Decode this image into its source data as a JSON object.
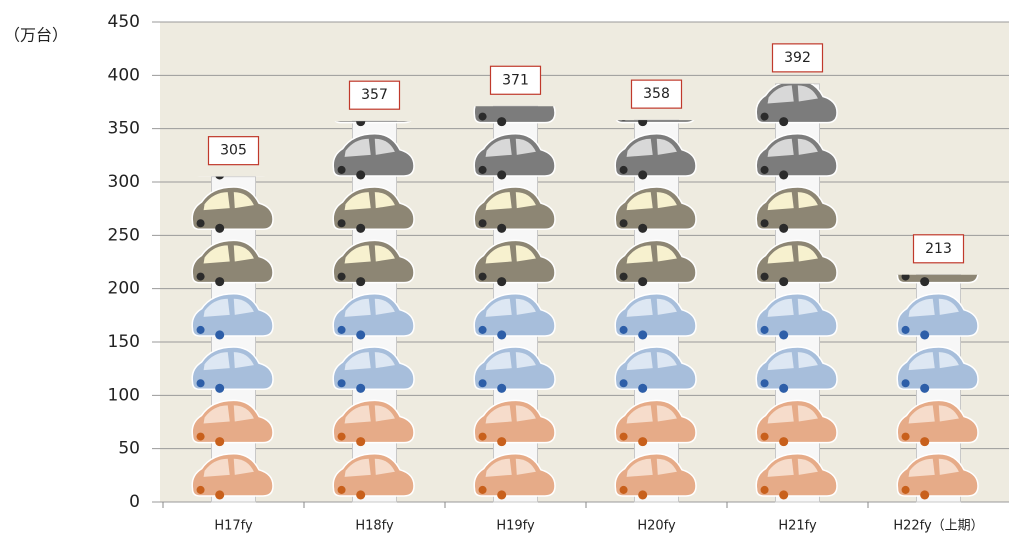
{
  "chart_data": {
    "type": "bar",
    "unit_label": "（万台）",
    "categories": [
      "H17fy",
      "H18fy",
      "H19fy",
      "H20fy",
      "H21fy",
      "H22fy（上期）"
    ],
    "values": [
      305,
      357,
      371,
      358,
      392,
      213
    ],
    "ylim": [
      0,
      450
    ],
    "yticks": [
      0,
      50,
      100,
      150,
      200,
      250,
      300,
      350,
      400,
      450
    ],
    "grid": true
  }
}
